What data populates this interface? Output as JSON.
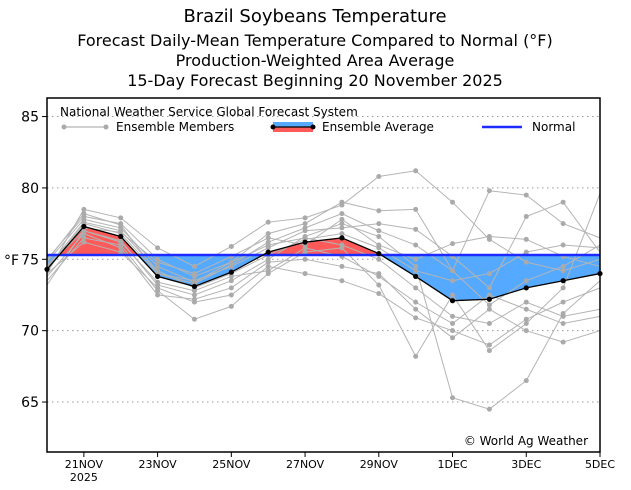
{
  "chart_data": {
    "type": "line",
    "title": "Brazil Soybeans Temperature",
    "subtitle_lines": [
      "Forecast Daily-Mean Temperature Compared to Normal (°F)",
      "Production-Weighted Area Average",
      "15-Day Forecast Beginning 20 November 2025"
    ],
    "ylabel": "°F",
    "ylim": [
      61.5,
      86.3
    ],
    "yticks": [
      65,
      70,
      75,
      80,
      85
    ],
    "x_days": 16,
    "xticks": [
      {
        "day": 1,
        "label": "21NOV",
        "sub": "2025"
      },
      {
        "day": 3,
        "label": "23NOV"
      },
      {
        "day": 5,
        "label": "25NOV"
      },
      {
        "day": 7,
        "label": "27NOV"
      },
      {
        "day": 9,
        "label": "29NOV"
      },
      {
        "day": 11,
        "label": "1DEC"
      },
      {
        "day": 13,
        "label": "3DEC"
      },
      {
        "day": 15,
        "label": "5DEC"
      }
    ],
    "grid": "horizontal dotted",
    "legend": {
      "title": "National Weather Service Global Forecast System",
      "members_label": "Ensemble Members",
      "average_label": "Ensemble Average",
      "normal_label": "Normal",
      "placement": "top"
    },
    "normal": 75.3,
    "ensemble_average": [
      74.3,
      77.3,
      76.6,
      73.8,
      73.1,
      74.1,
      75.5,
      76.2,
      76.5,
      75.4,
      73.8,
      72.1,
      72.2,
      73.0,
      73.5,
      74.0
    ],
    "ensemble_members": [
      [
        74.0,
        78.5,
        77.9,
        75.8,
        74.5,
        75.9,
        77.6,
        77.9,
        78.8,
        80.8,
        81.2,
        79.0,
        76.4,
        74.8,
        74.2,
        75.0
      ],
      [
        74.8,
        77.8,
        77.2,
        74.5,
        73.4,
        74.8,
        76.8,
        77.5,
        79.0,
        78.4,
        78.5,
        74.2,
        79.8,
        79.5,
        77.5,
        76.5
      ],
      [
        74.5,
        77.0,
        76.3,
        73.2,
        72.5,
        73.5,
        75.0,
        76.6,
        77.5,
        76.6,
        74.5,
        65.3,
        64.5,
        66.5,
        71.2,
        73.5
      ],
      [
        73.5,
        76.5,
        76.0,
        72.8,
        70.8,
        71.7,
        74.0,
        75.5,
        75.8,
        73.2,
        68.2,
        72.5,
        68.6,
        70.5,
        73.0,
        79.6
      ],
      [
        74.2,
        77.5,
        76.8,
        74.0,
        73.5,
        74.5,
        75.8,
        77.0,
        77.2,
        77.5,
        77.1,
        75.2,
        73.0,
        78.0,
        79.0,
        75.5
      ],
      [
        75.0,
        78.0,
        77.5,
        75.0,
        73.8,
        74.8,
        76.0,
        76.5,
        76.0,
        75.0,
        73.0,
        71.0,
        70.5,
        72.0,
        71.0,
        71.5
      ],
      [
        73.8,
        76.8,
        75.8,
        72.5,
        72.2,
        73.0,
        74.8,
        75.0,
        74.5,
        74.0,
        71.5,
        69.5,
        71.5,
        70.0,
        69.2,
        70.0
      ],
      [
        74.6,
        77.2,
        76.9,
        74.8,
        74.0,
        75.2,
        76.5,
        76.0,
        77.8,
        76.0,
        75.0,
        76.1,
        76.6,
        76.4,
        75.2,
        74.5
      ],
      [
        74.0,
        76.2,
        75.5,
        73.0,
        72.0,
        72.5,
        74.5,
        74.0,
        73.5,
        72.6,
        70.9,
        70.0,
        69.0,
        70.8,
        72.0,
        73.0
      ],
      [
        74.4,
        77.6,
        77.0,
        74.2,
        73.0,
        74.0,
        75.3,
        76.4,
        76.8,
        75.8,
        74.2,
        73.5,
        74.0,
        75.5,
        76.0,
        75.8
      ],
      [
        73.2,
        77.0,
        76.2,
        73.4,
        72.8,
        73.8,
        74.2,
        75.8,
        75.2,
        73.8,
        72.0,
        70.5,
        72.5,
        71.5,
        70.5,
        71.0
      ],
      [
        74.9,
        78.2,
        77.4,
        74.0,
        73.3,
        74.6,
        76.2,
        77.2,
        78.2,
        77.0,
        76.0,
        74.2,
        71.8,
        73.5,
        74.5,
        76.0
      ]
    ],
    "annotation": "© World Ag Weather"
  },
  "colors": {
    "above": "#ff5a5a",
    "below": "#55aaff",
    "normal": "#1c2cff",
    "member": "#b4b4b4",
    "average": "#000000"
  }
}
